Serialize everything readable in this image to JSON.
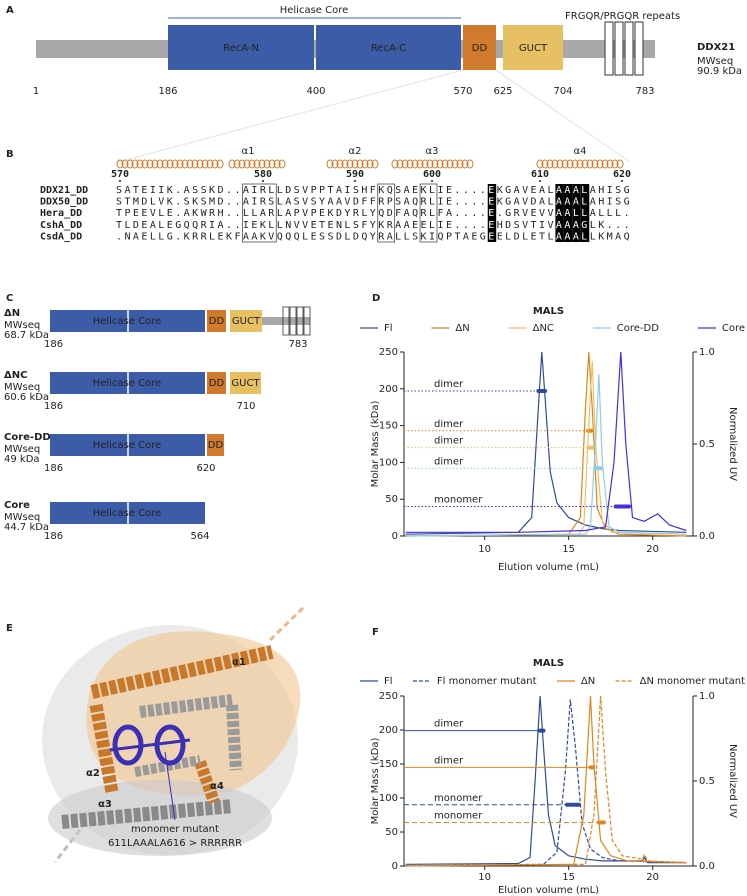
{
  "panel_labels": [
    "A",
    "B",
    "C",
    "D",
    "E",
    "F"
  ],
  "domain_map": {
    "helicase_core": "Helicase Core",
    "domains": [
      "RecA-N",
      "RecA-C",
      "DD",
      "GUCT"
    ],
    "repeats": "FRGQR/PRGQR repeats",
    "name": "DDX21",
    "mw_label": "MWseq",
    "mw": "90.9 kDa",
    "positions": [
      1,
      186,
      400,
      570,
      625,
      704,
      783
    ]
  },
  "alignment": {
    "helices": [
      "α1",
      "α2",
      "α3",
      "α4"
    ],
    "ruler": [
      570,
      580,
      590,
      600,
      610,
      620
    ],
    "rows": [
      {
        "name": "DDX21_DD",
        "seq": "SATEIIK.ASSKD..AIRLLDSVPPTAISHFKQSAEKLIE....EKGAVEALAAALAHISG"
      },
      {
        "name": "DDX50_DD",
        "seq": "STMDLVK.SKSMD..AIRSLASVSYAAVDFFRPSAQRLIE....EKGAVDALAAALAHISG"
      },
      {
        "name": "Hera_DD",
        "seq": "TPEEVLE.AKWRH..LLARLAPVPEKDYRLYQDFAQRLFA....E.GRVEVVAALLALLL."
      },
      {
        "name": "CshA_DD",
        "seq": "TLDEALEGQQRIA..IEKLLNVVETENLSFYKRAAEELIE....EHDSVTIVAAAGLK..."
      },
      {
        "name": "CsdA_DD",
        "seq": ".NAELLG.KRRLEKFAAKVQQQLESSDLDQYRALLSKIQPTAEGEELDLETLAAALLKMAQ"
      }
    ]
  },
  "constructs": [
    {
      "name": "ΔN",
      "mw_label": "MWseq",
      "mw": "68.7 kDa",
      "core": "Helicase Core",
      "domains": [
        "DD",
        "GUCT"
      ],
      "start": 186,
      "end": 783
    },
    {
      "name": "ΔNC",
      "mw_label": "MWseq",
      "mw": "60.6 kDa",
      "core": "Helicase Core",
      "domains": [
        "DD",
        "GUCT"
      ],
      "start": 186,
      "end": 710
    },
    {
      "name": "Core-DD",
      "mw_label": "MWseq",
      "mw": "49 kDa",
      "core": "Helicase Core",
      "domains": [
        "DD"
      ],
      "start": 186,
      "end": 620
    },
    {
      "name": "Core",
      "mw_label": "MWseq",
      "mw": "44.7 kDa",
      "core": "Helicase Core",
      "domains": [],
      "start": 186,
      "end": 564
    }
  ],
  "structure": {
    "helices": [
      "α1",
      "α2",
      "α3",
      "α4"
    ],
    "mutant": "monomer mutant",
    "mutation": "611LAAALA616 > RRRRRR"
  },
  "chart_data": [
    {
      "type": "line",
      "title": "MALS",
      "xlabel": "Elution volume (mL)",
      "ylabel": "Molar Mass (kDa)",
      "y2label": "Normalized UV",
      "xlim": [
        5.2,
        22.4
      ],
      "xticks": [
        10,
        15,
        20
      ],
      "ylim": [
        0,
        250
      ],
      "yticks": [
        0,
        50,
        100,
        150,
        200,
        250
      ],
      "y2lim": [
        0,
        1
      ],
      "y2ticks": [
        {
          "value": 0,
          "label": "0.0"
        },
        {
          "value": 0.5,
          "label": "0.5"
        },
        {
          "value": 1,
          "label": "1.0"
        }
      ],
      "mass_line": "dotted",
      "series": [
        {
          "name": "Fl",
          "color": "#2f4c9c",
          "axis": "y2",
          "x": [
            5.3,
            12,
            12.8,
            13.2,
            13.4,
            13.6,
            13.9,
            14.3,
            15,
            16,
            17,
            18,
            22
          ],
          "values": [
            0.01,
            0.02,
            0.1,
            0.7,
            1.0,
            0.75,
            0.35,
            0.18,
            0.1,
            0.06,
            0.04,
            0.03,
            0.02
          ],
          "mass": {
            "label": "dimer",
            "value": 197,
            "x": [
              13.2,
              13.6
            ]
          }
        },
        {
          "name": "ΔN",
          "color": "#e0861a",
          "axis": "y2",
          "x": [
            5.3,
            15,
            15.7,
            16,
            16.2,
            16.4,
            16.7,
            17.2,
            18,
            22
          ],
          "values": [
            0,
            0.01,
            0.1,
            0.7,
            1.0,
            0.7,
            0.15,
            0.04,
            0.01,
            0
          ],
          "mass": {
            "label": "dimer",
            "value": 143,
            "x": [
              16.15,
              16.35
            ]
          }
        },
        {
          "name": "ΔNC",
          "color": "#f0c060",
          "axis": "y2",
          "x": [
            5.3,
            15.6,
            15.9,
            16.2,
            16.4,
            16.6,
            17,
            17.6,
            22
          ],
          "values": [
            0,
            0.01,
            0.05,
            0.6,
            0.95,
            0.5,
            0.08,
            0.02,
            0.01
          ],
          "mass": {
            "label": "dimer",
            "value": 120,
            "x": [
              16.2,
              16.4
            ]
          }
        },
        {
          "name": "Core-DD",
          "color": "#8ecde8",
          "axis": "y2",
          "x": [
            5.3,
            16,
            16.3,
            16.6,
            16.8,
            17,
            17.4,
            18,
            22
          ],
          "values": [
            0,
            0.01,
            0.05,
            0.5,
            0.88,
            0.4,
            0.05,
            0.02,
            0.01
          ],
          "mass": {
            "label": "dimer",
            "value": 92,
            "x": [
              16.6,
              16.9
            ]
          }
        },
        {
          "name": "Core",
          "color": "#4b2be0",
          "axis": "y2",
          "x": [
            5.3,
            12,
            16,
            17.2,
            17.7,
            18.1,
            18.4,
            18.8,
            19.5,
            20.3,
            21,
            22
          ],
          "values": [
            0.02,
            0.02,
            0.03,
            0.05,
            0.4,
            1.0,
            0.5,
            0.1,
            0.08,
            0.12,
            0.06,
            0.03
          ],
          "mass": {
            "label": "monomer",
            "value": 40,
            "x": [
              17.8,
              18.6
            ]
          }
        }
      ]
    },
    {
      "type": "line",
      "title": "MALS",
      "xlabel": "Elution volume (mL)",
      "ylabel": "Molar Mass (kDa)",
      "y2label": "Normalized UV",
      "xlim": [
        5.2,
        22.4
      ],
      "xticks": [
        10,
        15,
        20
      ],
      "ylim": [
        0,
        250
      ],
      "yticks": [
        0,
        50,
        100,
        150,
        200,
        250
      ],
      "y2lim": [
        0,
        1
      ],
      "y2ticks": [
        {
          "value": 0,
          "label": "0.0"
        },
        {
          "value": 0.5,
          "label": "0.5"
        },
        {
          "value": 1,
          "label": "1.0"
        }
      ],
      "mass_line": "solid",
      "series": [
        {
          "name": "Fl",
          "color": "#2f4c9c",
          "axis": "y2",
          "dash": false,
          "x": [
            5.3,
            12,
            12.7,
            13,
            13.3,
            13.5,
            13.8,
            14.2,
            15,
            16,
            17,
            19.4,
            19.5,
            19.7,
            22
          ],
          "values": [
            0.01,
            0.015,
            0.05,
            0.5,
            1.0,
            0.7,
            0.3,
            0.12,
            0.06,
            0.04,
            0.03,
            0.03,
            0.05,
            0.02,
            0.02
          ],
          "mass": {
            "label": "dimer",
            "value": 199,
            "x": [
              13.25,
              13.5
            ]
          }
        },
        {
          "name": "Fl monomer mutant",
          "color": "#2f4c9c",
          "axis": "y2",
          "dash": true,
          "x": [
            5.3,
            13.5,
            14.3,
            14.8,
            15.1,
            15.4,
            15.8,
            16.3,
            17,
            18,
            22
          ],
          "values": [
            0,
            0.01,
            0.08,
            0.55,
            0.98,
            0.7,
            0.25,
            0.1,
            0.05,
            0.03,
            0.02
          ],
          "mass": {
            "label": "monomer",
            "value": 90,
            "x": [
              14.9,
              15.6
            ]
          }
        },
        {
          "name": "ΔN",
          "color": "#e0861a",
          "axis": "y2",
          "dash": false,
          "x": [
            5.3,
            15.3,
            15.9,
            16.3,
            16.5,
            16.9,
            17.5,
            18.5,
            22
          ],
          "values": [
            0,
            0.01,
            0.3,
            1.0,
            0.6,
            0.15,
            0.06,
            0.03,
            0.02
          ],
          "mass": {
            "label": "dimer",
            "value": 145,
            "x": [
              16.3,
              16.45
            ]
          }
        },
        {
          "name": "ΔN monomer mutant",
          "color": "#e0861a",
          "axis": "y2",
          "dash": true,
          "x": [
            5.3,
            16,
            16.5,
            16.9,
            17.2,
            17.6,
            18.2,
            19.4,
            19.5,
            19.7,
            22
          ],
          "values": [
            0,
            0.01,
            0.3,
            1.0,
            0.55,
            0.15,
            0.06,
            0.04,
            0.07,
            0.03,
            0.02
          ],
          "mass": {
            "label": "monomer",
            "value": 64,
            "x": [
              16.8,
              17.1
            ]
          }
        }
      ]
    }
  ]
}
